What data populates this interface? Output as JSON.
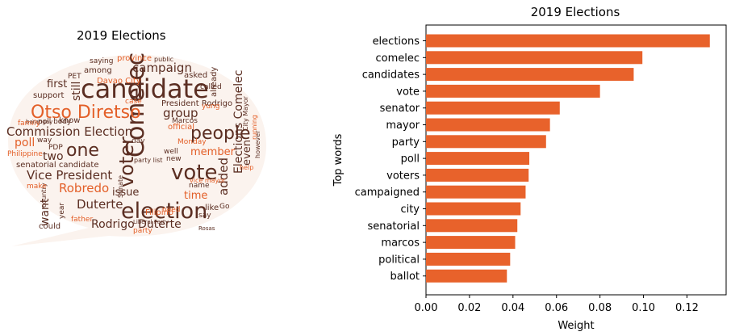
{
  "wordcloud": {
    "title": "2019 Elections",
    "colors": {
      "dark": "#5b2e22",
      "accent": "#e35f28",
      "light": "#e9a27e"
    },
    "words": [
      {
        "text": "candidate",
        "tone": "dark"
      },
      {
        "text": "Comelec",
        "tone": "dark"
      },
      {
        "text": "election",
        "tone": "dark"
      },
      {
        "text": "Otso Diretso",
        "tone": "accent"
      },
      {
        "text": "voter",
        "tone": "dark"
      },
      {
        "text": "vote",
        "tone": "dark"
      },
      {
        "text": "people",
        "tone": "dark"
      },
      {
        "text": "one",
        "tone": "dark"
      },
      {
        "text": "Commission Election",
        "tone": "dark"
      },
      {
        "text": "Vice President",
        "tone": "dark"
      },
      {
        "text": "Duterte",
        "tone": "dark"
      },
      {
        "text": "Robredo",
        "tone": "accent"
      },
      {
        "text": "Rodrigo Duterte",
        "tone": "dark"
      },
      {
        "text": "campaign",
        "tone": "dark"
      },
      {
        "text": "Elections Comelec",
        "tone": "dark"
      },
      {
        "text": "group",
        "tone": "dark"
      },
      {
        "text": "member",
        "tone": "accent"
      },
      {
        "text": "added",
        "tone": "dark"
      },
      {
        "text": "time",
        "tone": "accent"
      },
      {
        "text": "issue",
        "tone": "dark"
      },
      {
        "text": "two",
        "tone": "dark"
      },
      {
        "text": "first",
        "tone": "dark"
      },
      {
        "text": "still",
        "tone": "dark"
      },
      {
        "text": "want",
        "tone": "dark"
      },
      {
        "text": "poll",
        "tone": "accent"
      },
      {
        "text": "even",
        "tone": "dark"
      },
      {
        "text": "President Rodrigo",
        "tone": "dark"
      },
      {
        "text": "Davao City",
        "tone": "accent"
      },
      {
        "text": "senatorial candidate",
        "tone": "dark"
      },
      {
        "text": "Philippine",
        "tone": "accent"
      },
      {
        "text": "official",
        "tone": "accent"
      },
      {
        "text": "among",
        "tone": "dark"
      },
      {
        "text": "province",
        "tone": "accent"
      },
      {
        "text": "saying",
        "tone": "dark"
      },
      {
        "text": "public",
        "tone": "dark"
      },
      {
        "text": "asked",
        "tone": "dark"
      },
      {
        "text": "already",
        "tone": "dark"
      },
      {
        "text": "support",
        "tone": "dark"
      },
      {
        "text": "poll body",
        "tone": "dark"
      },
      {
        "text": "barangay",
        "tone": "dark"
      },
      {
        "text": "know",
        "tone": "dark"
      },
      {
        "text": "family",
        "tone": "accent"
      },
      {
        "text": "PDP",
        "tone": "dark"
      },
      {
        "text": "way",
        "tone": "dark"
      },
      {
        "text": "Marcos",
        "tone": "dark"
      },
      {
        "text": "Monday",
        "tone": "accent"
      },
      {
        "text": "party list",
        "tone": "dark"
      },
      {
        "text": "new",
        "tone": "dark"
      },
      {
        "text": "well",
        "tone": "dark"
      },
      {
        "text": "vice mayor",
        "tone": "accent"
      },
      {
        "text": "name",
        "tone": "dark"
      },
      {
        "text": "however",
        "tone": "dark"
      },
      {
        "text": "running",
        "tone": "accent"
      },
      {
        "text": "City Mayor",
        "tone": "dark"
      },
      {
        "text": "Senate",
        "tone": "dark"
      },
      {
        "text": "Filipino",
        "tone": "accent"
      },
      {
        "text": "need",
        "tone": "accent"
      },
      {
        "text": "like",
        "tone": "dark"
      },
      {
        "text": "say",
        "tone": "dark"
      },
      {
        "text": "could",
        "tone": "dark"
      },
      {
        "text": "father",
        "tone": "accent"
      },
      {
        "text": "country",
        "tone": "dark"
      },
      {
        "text": "year",
        "tone": "dark"
      },
      {
        "text": "party",
        "tone": "accent"
      },
      {
        "text": "Liberal Party",
        "tone": "dark"
      },
      {
        "text": "make",
        "tone": "accent"
      },
      {
        "text": "help",
        "tone": "accent"
      },
      {
        "text": "yung",
        "tone": "accent"
      },
      {
        "text": "called",
        "tone": "dark"
      },
      {
        "text": "PET",
        "tone": "dark"
      },
      {
        "text": "case",
        "tone": "accent"
      },
      {
        "text": "day",
        "tone": "dark"
      },
      {
        "text": "Go",
        "tone": "dark"
      },
      {
        "text": "Rosas",
        "tone": "dark"
      }
    ]
  },
  "chart_data": {
    "type": "bar",
    "orientation": "horizontal",
    "title": "2019 Elections",
    "xlabel": "Weight",
    "ylabel": "Top words",
    "categories": [
      "elections",
      "comelec",
      "candidates",
      "vote",
      "senator",
      "mayor",
      "party",
      "poll",
      "voters",
      "campaigned",
      "city",
      "senatorial",
      "marcos",
      "political",
      "ballot"
    ],
    "values": [
      0.1305,
      0.0995,
      0.0955,
      0.08,
      0.0615,
      0.057,
      0.0552,
      0.0475,
      0.0472,
      0.0458,
      0.0435,
      0.042,
      0.041,
      0.0387,
      0.0372
    ],
    "xlim": [
      0,
      0.138
    ],
    "xticks": [
      "0.00",
      "0.02",
      "0.04",
      "0.06",
      "0.08",
      "0.10",
      "0.12"
    ],
    "xtick_values": [
      0,
      0.02,
      0.04,
      0.06,
      0.08,
      0.1,
      0.12
    ],
    "bar_color": "#e8622b",
    "grid": false
  }
}
